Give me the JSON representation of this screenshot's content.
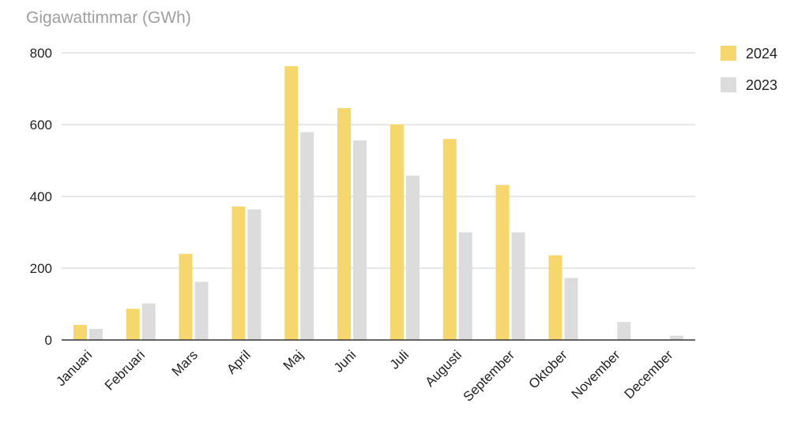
{
  "chart_data": {
    "type": "bar",
    "ylabel": "Gigawattimmar (GWh)",
    "xlabel": "",
    "categories": [
      "Januari",
      "Februari",
      "Mars",
      "April",
      "Maj",
      "Juni",
      "Juli",
      "Augusti",
      "September",
      "Oktober",
      "November",
      "December"
    ],
    "series": [
      {
        "name": "2024",
        "color": "#f5d76e",
        "values": [
          42,
          87,
          240,
          372,
          763,
          646,
          601,
          560,
          432,
          236,
          null,
          null
        ]
      },
      {
        "name": "2023",
        "color": "#dcdcdc",
        "values": [
          31,
          102,
          162,
          364,
          579,
          556,
          458,
          300,
          300,
          173,
          50,
          12
        ]
      }
    ],
    "ylim": [
      0,
      800
    ],
    "yticks": [
      "0",
      "200",
      "400",
      "600",
      "800"
    ],
    "grid": true,
    "legend": "right"
  }
}
